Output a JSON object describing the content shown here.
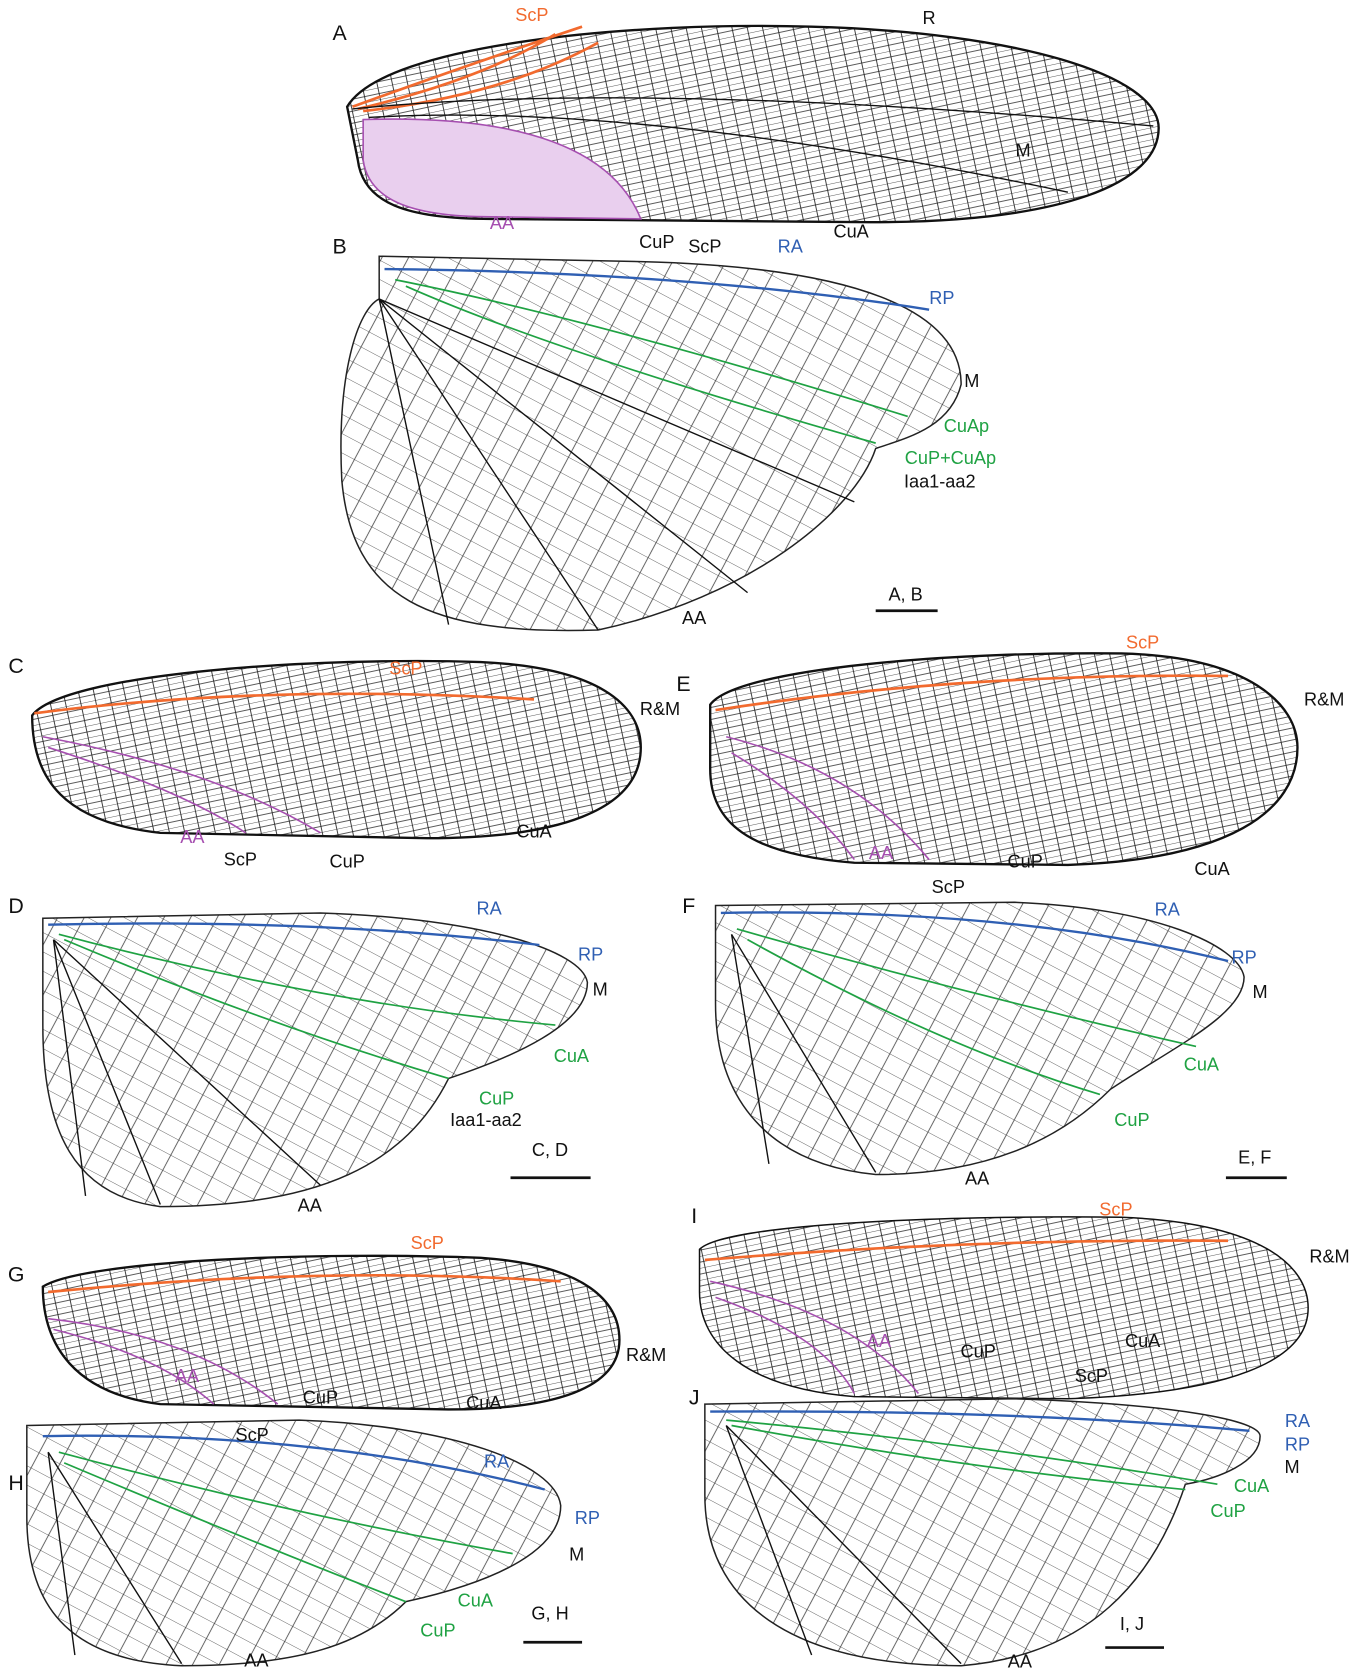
{
  "panels": [
    {
      "letter": "A",
      "labels": [
        "ScP",
        "R",
        "M",
        "CuA",
        "CuP",
        "AA"
      ]
    },
    {
      "letter": "B",
      "labels": [
        "ScP",
        "RA",
        "RP",
        "M",
        "CuAp",
        "CuP+CuAp",
        "Iaa1-aa2",
        "AA"
      ],
      "scale": "A, B"
    },
    {
      "letter": "C",
      "labels": [
        "ScP",
        "R&M",
        "AA",
        "CuA",
        "CuP"
      ]
    },
    {
      "letter": "D",
      "labels": [
        "ScP",
        "RA",
        "RP",
        "M",
        "CuA",
        "CuP",
        "Iaa1-aa2",
        "AA"
      ],
      "scale": "C, D"
    },
    {
      "letter": "E",
      "labels": [
        "ScP",
        "R&M",
        "AA",
        "CuP",
        "CuA"
      ]
    },
    {
      "letter": "F",
      "labels": [
        "ScP",
        "RA",
        "RP",
        "M",
        "CuA",
        "CuP",
        "AA"
      ],
      "scale": "E, F"
    },
    {
      "letter": "G",
      "labels": [
        "ScP",
        "R&M",
        "AA",
        "CuP",
        "CuA"
      ]
    },
    {
      "letter": "H",
      "labels": [
        "ScP",
        "RA",
        "RP",
        "M",
        "CuA",
        "CuP",
        "AA"
      ],
      "scale": "G, H"
    },
    {
      "letter": "I",
      "labels": [
        "ScP",
        "R&M",
        "AA",
        "CuP",
        "CuA"
      ]
    },
    {
      "letter": "J",
      "labels": [
        "ScP",
        "RA",
        "RP",
        "M",
        "CuA",
        "CuP",
        "AA"
      ],
      "scale": "I, J"
    }
  ]
}
